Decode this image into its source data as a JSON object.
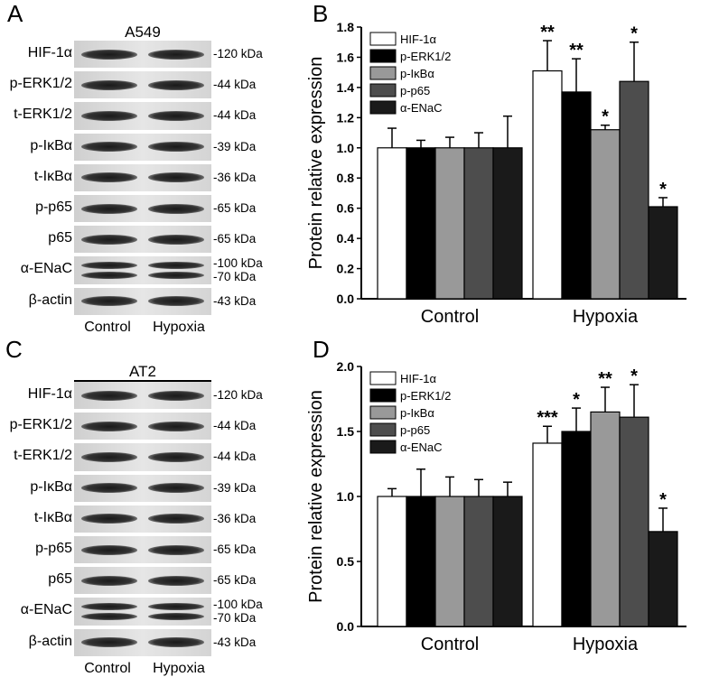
{
  "panels": {
    "A": {
      "letter": "A",
      "cell_line": "A549",
      "rows": [
        {
          "label": "HIF-1α",
          "kda": "-120 kDa"
        },
        {
          "label": "p-ERK1/2",
          "kda": "-44 kDa"
        },
        {
          "label": "t-ERK1/2",
          "kda": "-44 kDa"
        },
        {
          "label": "p-IκBα",
          "kda": "-39 kDa"
        },
        {
          "label": "t-IκBα",
          "kda": "-36 kDa"
        },
        {
          "label": "p-p65",
          "kda": "-65 kDa"
        },
        {
          "label": "p65",
          "kda": "-65 kDa"
        },
        {
          "label": "α-ENaC",
          "kda": "-100 kDa\n-70 kDa"
        },
        {
          "label": "β-actin",
          "kda": "-43 kDa"
        }
      ],
      "lanes": [
        "Control",
        "Hypoxia"
      ]
    },
    "C": {
      "letter": "C",
      "cell_line": "AT2",
      "rows": [
        {
          "label": "HIF-1α",
          "kda": "-120 kDa"
        },
        {
          "label": "p-ERK1/2",
          "kda": "-44 kDa"
        },
        {
          "label": "t-ERK1/2",
          "kda": "-44 kDa"
        },
        {
          "label": "p-IκBα",
          "kda": "-39 kDa"
        },
        {
          "label": "t-IκBα",
          "kda": "-36 kDa"
        },
        {
          "label": "p-p65",
          "kda": "-65 kDa"
        },
        {
          "label": "p65",
          "kda": "-65 kDa"
        },
        {
          "label": "α-ENaC",
          "kda": "-100 kDa\n-70 kDa"
        },
        {
          "label": "β-actin",
          "kda": "-43 kDa"
        }
      ],
      "lanes": [
        "Control",
        "Hypoxia"
      ]
    },
    "B": {
      "letter": "B"
    },
    "D": {
      "letter": "D"
    }
  },
  "chart_data": [
    {
      "panel": "B",
      "type": "bar",
      "ylabel": "Protein relative expression",
      "ylim": [
        0,
        1.8
      ],
      "yticks": [
        "0.0",
        "0.2",
        "0.4",
        "0.6",
        "0.8",
        "1.0",
        "1.2",
        "1.4",
        "1.6",
        "1.8"
      ],
      "categories": [
        "Control",
        "Hypoxia"
      ],
      "legend_position": "top-left",
      "series": [
        {
          "name": "HIF-1α",
          "color": "#ffffff",
          "values": [
            1.0,
            1.51
          ],
          "errors": [
            0.13,
            0.2
          ],
          "stars": [
            "",
            "**"
          ]
        },
        {
          "name": "p-ERK1/2",
          "color": "#000000",
          "values": [
            1.0,
            1.37
          ],
          "errors": [
            0.05,
            0.22
          ],
          "stars": [
            "",
            "**"
          ]
        },
        {
          "name": "p-IκBα",
          "color": "#999999",
          "values": [
            1.0,
            1.12
          ],
          "errors": [
            0.07,
            0.03
          ],
          "stars": [
            "",
            "*"
          ]
        },
        {
          "name": "p-p65",
          "color": "#4d4d4d",
          "values": [
            1.0,
            1.44
          ],
          "errors": [
            0.1,
            0.26
          ],
          "stars": [
            "",
            "*"
          ]
        },
        {
          "name": "α-ENaC",
          "color": "#1a1a1a",
          "values": [
            1.0,
            0.61
          ],
          "errors": [
            0.21,
            0.06
          ],
          "stars": [
            "",
            "*"
          ]
        }
      ]
    },
    {
      "panel": "D",
      "type": "bar",
      "ylabel": "Protein relative expression",
      "ylim": [
        0,
        2.0
      ],
      "yticks": [
        "0.0",
        "0.5",
        "1.0",
        "1.5",
        "2.0"
      ],
      "categories": [
        "Control",
        "Hypoxia"
      ],
      "legend_position": "top-left",
      "series": [
        {
          "name": "HIF-1α",
          "color": "#ffffff",
          "values": [
            1.0,
            1.41
          ],
          "errors": [
            0.06,
            0.13
          ],
          "stars": [
            "",
            "***"
          ]
        },
        {
          "name": "p-ERK1/2",
          "color": "#000000",
          "values": [
            1.0,
            1.5
          ],
          "errors": [
            0.21,
            0.18
          ],
          "stars": [
            "",
            "*"
          ]
        },
        {
          "name": "p-IκBα",
          "color": "#999999",
          "values": [
            1.0,
            1.65
          ],
          "errors": [
            0.15,
            0.19
          ],
          "stars": [
            "",
            "**"
          ]
        },
        {
          "name": "p-p65",
          "color": "#4d4d4d",
          "values": [
            1.0,
            1.61
          ],
          "errors": [
            0.13,
            0.25
          ],
          "stars": [
            "",
            "*"
          ]
        },
        {
          "name": "α-ENaC",
          "color": "#1a1a1a",
          "values": [
            1.0,
            0.73
          ],
          "errors": [
            0.11,
            0.18
          ],
          "stars": [
            "",
            "*"
          ]
        }
      ]
    }
  ]
}
